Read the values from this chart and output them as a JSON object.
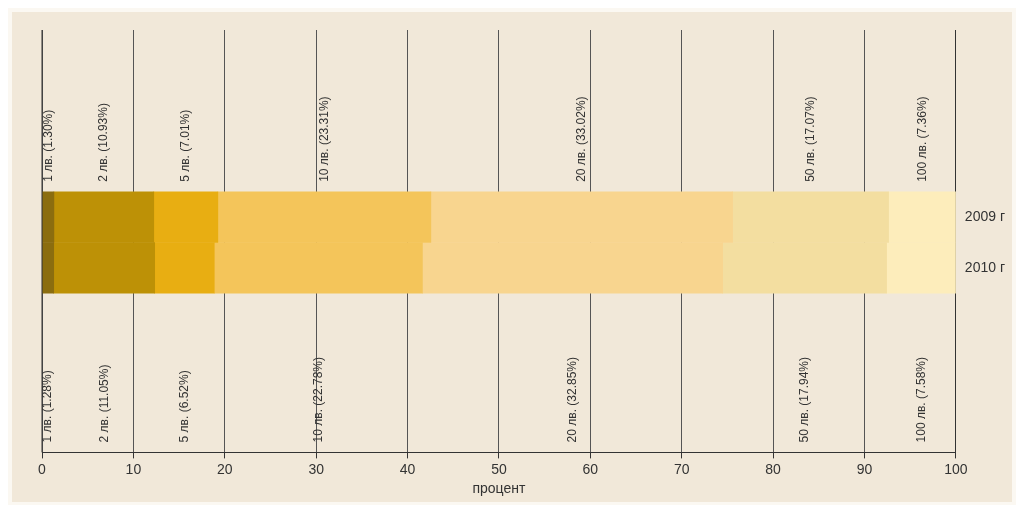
{
  "chart_data": {
    "type": "bar",
    "orientation": "horizontal",
    "stacked": true,
    "categories": [
      "2009 г",
      "2010 г"
    ],
    "xlabel": "процент",
    "xlim": [
      0,
      100
    ],
    "xticks": [
      0,
      10,
      20,
      30,
      40,
      50,
      60,
      70,
      80,
      90,
      100
    ],
    "grid": "x",
    "series": [
      {
        "name": "1 лв.",
        "color": "#8b6d0f",
        "values": [
          1.3,
          1.28
        ],
        "value_labels": [
          "(1.30%)",
          "(1.28%)"
        ]
      },
      {
        "name": "2 лв.",
        "color": "#bd9106",
        "values": [
          10.93,
          11.05
        ],
        "value_labels": [
          "(10.93%)",
          "(11.05%)"
        ]
      },
      {
        "name": "5 лв.",
        "color": "#e8ae12",
        "values": [
          7.01,
          6.52
        ],
        "value_labels": [
          "(7.01%)",
          "(6.52%)"
        ]
      },
      {
        "name": "10 лв.",
        "color": "#f4c55a",
        "values": [
          23.31,
          22.78
        ],
        "value_labels": [
          "(23.31%)",
          "(22.78%)"
        ]
      },
      {
        "name": "20 лв.",
        "color": "#f8d58f",
        "values": [
          33.02,
          32.85
        ],
        "value_labels": [
          "(33.02%)",
          "(32.85%)"
        ]
      },
      {
        "name": "50 лв.",
        "color": "#f3dea0",
        "values": [
          17.07,
          17.94
        ],
        "value_labels": [
          "(17.07%)",
          "(17.94%)"
        ]
      },
      {
        "name": "100 лв.",
        "color": "#fdedbb",
        "values": [
          7.36,
          7.58
        ],
        "value_labels": [
          "(7.36%)",
          "(7.58%)"
        ]
      }
    ]
  }
}
